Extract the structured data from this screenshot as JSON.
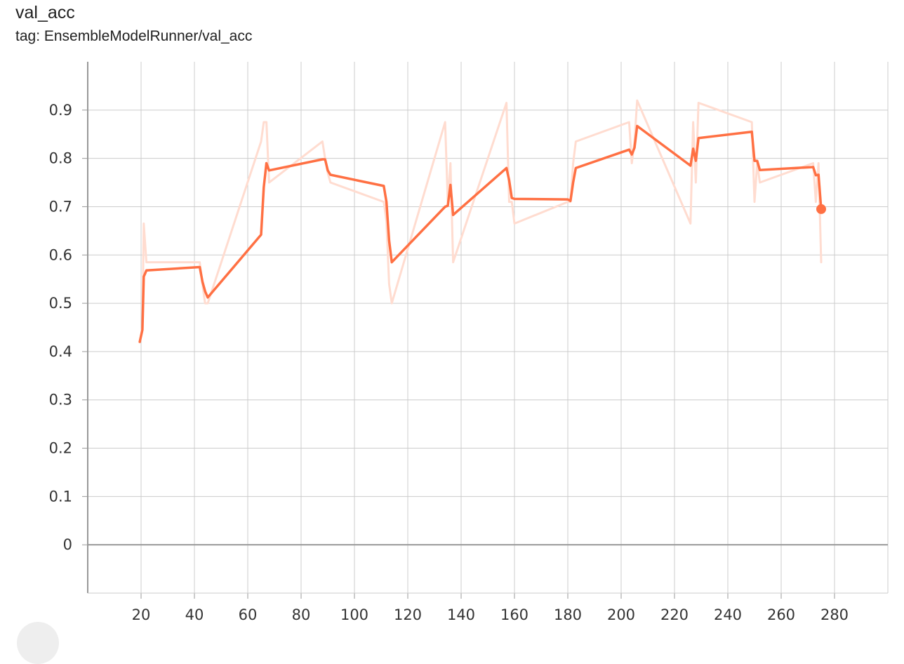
{
  "card": {
    "title": "val_acc",
    "tag": "tag: EnsembleModelRunner/val_acc"
  },
  "colors": {
    "smoothed": "#ff7043",
    "raw": "#ffdcd0",
    "grid": "#cccccc",
    "axis": "#999999",
    "zero_line": "#999999"
  },
  "chart_data": {
    "type": "line",
    "title": "val_acc",
    "xlabel": "",
    "ylabel": "",
    "xlim": [
      0,
      300
    ],
    "ylim": [
      -0.1,
      1.0
    ],
    "xticks": [
      20,
      40,
      60,
      80,
      100,
      120,
      140,
      160,
      180,
      200,
      220,
      240,
      260,
      280
    ],
    "yticks": [
      0,
      0.1,
      0.2,
      0.3,
      0.4,
      0.5,
      0.6,
      0.7,
      0.8,
      0.9
    ],
    "grid": true,
    "series": [
      {
        "role": "raw",
        "x": [
          19.5,
          20.5,
          21,
          22,
          42,
          43,
          44,
          45,
          65,
          66,
          67,
          68,
          88,
          89,
          90,
          91,
          111,
          112,
          113,
          114,
          134,
          135,
          136,
          137,
          157,
          158,
          159,
          160,
          180,
          181,
          182,
          183,
          203,
          204,
          205,
          206,
          226,
          227,
          228,
          229,
          249,
          250,
          251,
          252,
          272,
          273,
          274,
          275
        ],
        "y": [
          0.42,
          0.45,
          0.665,
          0.585,
          0.585,
          0.54,
          0.5,
          0.5,
          0.835,
          0.875,
          0.875,
          0.75,
          0.835,
          0.8,
          0.77,
          0.75,
          0.71,
          0.67,
          0.54,
          0.5,
          0.875,
          0.71,
          0.79,
          0.585,
          0.915,
          0.71,
          0.71,
          0.665,
          0.71,
          0.71,
          0.79,
          0.835,
          0.875,
          0.79,
          0.835,
          0.92,
          0.665,
          0.875,
          0.75,
          0.915,
          0.875,
          0.71,
          0.79,
          0.75,
          0.79,
          0.71,
          0.79,
          0.585
        ]
      },
      {
        "role": "smoothed",
        "x": [
          19.5,
          20.5,
          21,
          22,
          42,
          43,
          44,
          45,
          65,
          66,
          67,
          68,
          88,
          89,
          90,
          91,
          111,
          112,
          113,
          114,
          134,
          135,
          136,
          137,
          157,
          158,
          159,
          160,
          180,
          181,
          182,
          183,
          203,
          204,
          205,
          206,
          226,
          227,
          228,
          229,
          249,
          250,
          251,
          252,
          272,
          273,
          274,
          275
        ],
        "y": [
          0.42,
          0.445,
          0.555,
          0.568,
          0.575,
          0.545,
          0.525,
          0.512,
          0.642,
          0.74,
          0.79,
          0.775,
          0.798,
          0.798,
          0.775,
          0.766,
          0.743,
          0.71,
          0.63,
          0.585,
          0.7,
          0.702,
          0.745,
          0.683,
          0.78,
          0.755,
          0.718,
          0.716,
          0.715,
          0.712,
          0.75,
          0.78,
          0.818,
          0.808,
          0.822,
          0.867,
          0.785,
          0.82,
          0.795,
          0.842,
          0.855,
          0.795,
          0.795,
          0.776,
          0.782,
          0.765,
          0.766,
          0.695
        ]
      }
    ]
  }
}
